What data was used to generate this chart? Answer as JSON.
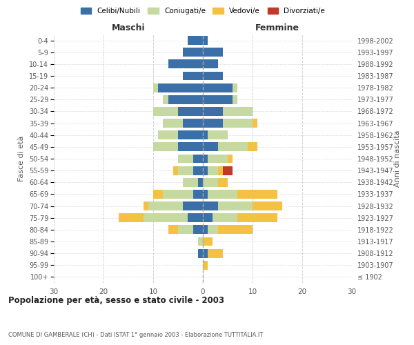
{
  "age_groups": [
    "100+",
    "95-99",
    "90-94",
    "85-89",
    "80-84",
    "75-79",
    "70-74",
    "65-69",
    "60-64",
    "55-59",
    "50-54",
    "45-49",
    "40-44",
    "35-39",
    "30-34",
    "25-29",
    "20-24",
    "15-19",
    "10-14",
    "5-9",
    "0-4"
  ],
  "birth_years": [
    "≤ 1902",
    "1903-1907",
    "1908-1912",
    "1913-1917",
    "1918-1922",
    "1923-1927",
    "1928-1932",
    "1933-1937",
    "1938-1942",
    "1943-1947",
    "1948-1952",
    "1953-1957",
    "1958-1962",
    "1963-1967",
    "1968-1972",
    "1973-1977",
    "1978-1982",
    "1983-1987",
    "1988-1992",
    "1993-1997",
    "1998-2002"
  ],
  "maschi": {
    "celibi": [
      0,
      0,
      1,
      0,
      2,
      3,
      4,
      2,
      1,
      2,
      2,
      5,
      5,
      4,
      5,
      7,
      9,
      4,
      7,
      4,
      3
    ],
    "coniugati": [
      0,
      0,
      0,
      1,
      3,
      9,
      7,
      6,
      3,
      3,
      3,
      5,
      4,
      4,
      5,
      1,
      1,
      0,
      0,
      0,
      0
    ],
    "vedovi": [
      0,
      0,
      0,
      0,
      2,
      5,
      1,
      2,
      0,
      1,
      0,
      0,
      0,
      0,
      0,
      0,
      0,
      0,
      0,
      0,
      0
    ],
    "divorziati": [
      0,
      0,
      0,
      0,
      0,
      0,
      0,
      0,
      0,
      0,
      0,
      0,
      0,
      0,
      0,
      0,
      0,
      0,
      0,
      0,
      0
    ]
  },
  "femmine": {
    "nubili": [
      0,
      0,
      1,
      0,
      1,
      2,
      3,
      1,
      0,
      1,
      1,
      3,
      1,
      4,
      4,
      6,
      6,
      4,
      3,
      4,
      1
    ],
    "coniugate": [
      0,
      0,
      0,
      0,
      2,
      5,
      7,
      6,
      3,
      2,
      4,
      6,
      4,
      6,
      6,
      1,
      1,
      0,
      0,
      0,
      0
    ],
    "vedove": [
      0,
      1,
      3,
      2,
      7,
      8,
      6,
      8,
      2,
      1,
      1,
      2,
      0,
      1,
      0,
      0,
      0,
      0,
      0,
      0,
      0
    ],
    "divorziate": [
      0,
      0,
      0,
      0,
      0,
      0,
      0,
      0,
      0,
      2,
      0,
      0,
      0,
      0,
      0,
      0,
      0,
      0,
      0,
      0,
      0
    ]
  },
  "colors": {
    "celibi": "#3B6FA8",
    "coniugati": "#C5D9A0",
    "vedovi": "#F5C142",
    "divorziati": "#C0392B"
  },
  "xlim": 30,
  "title": "Popolazione per età, sesso e stato civile - 2003",
  "subtitle": "COMUNE DI GAMBERALE (CH) - Dati ISTAT 1° gennaio 2003 - Elaborazione TUTTITALIA.IT",
  "ylabel_left": "Fasce di età",
  "ylabel_right": "Anni di nascita",
  "xlabel_left": "Maschi",
  "xlabel_right": "Femmine",
  "legend_labels": [
    "Celibi/Nubili",
    "Coniugati/e",
    "Vedovi/e",
    "Divorziati/e"
  ],
  "bg_color": "#ffffff",
  "grid_color": "#cccccc"
}
